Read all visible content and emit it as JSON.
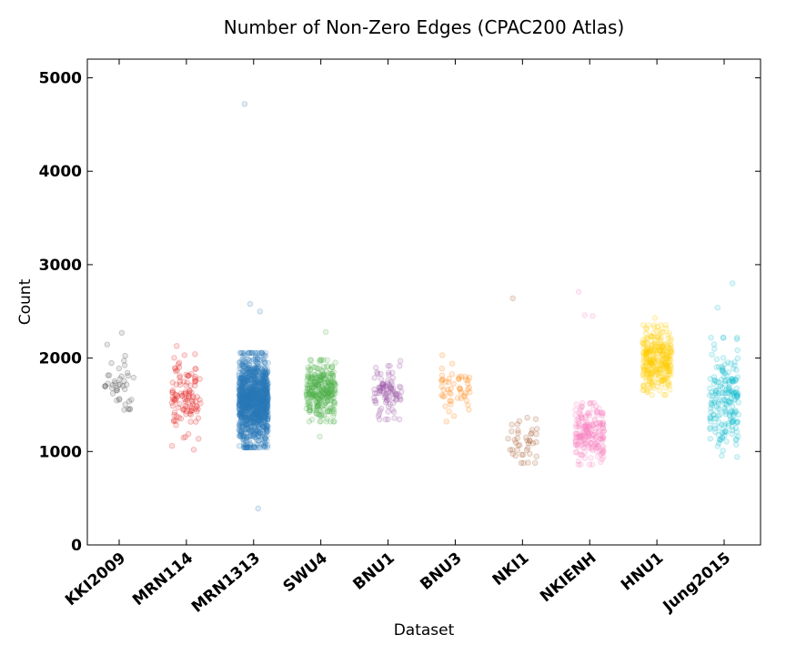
{
  "chart_data": {
    "type": "scatter",
    "title": "Number of Non-Zero Edges (CPAC200 Atlas)",
    "xlabel": "Dataset",
    "ylabel": "Count",
    "ylim": [
      0,
      5200
    ],
    "yticks": [
      0,
      1000,
      2000,
      3000,
      4000,
      5000
    ],
    "grid": false,
    "categories": [
      "KKI2009",
      "MRN114",
      "MRN1313",
      "SWU4",
      "BNU1",
      "BNU3",
      "NKI1",
      "NKIENH",
      "HNU1",
      "Jung2015"
    ],
    "series": [
      {
        "category": "KKI2009",
        "color": "#444444",
        "count": 40,
        "mean": 1760,
        "sd": 190,
        "outliers": [
          2270,
          1450
        ]
      },
      {
        "category": "MRN114",
        "color": "#e41a1c",
        "count": 110,
        "mean": 1580,
        "sd": 210,
        "outliers": [
          2130,
          1060,
          1020
        ]
      },
      {
        "category": "MRN1313",
        "color": "#2b7bba",
        "count": 1200,
        "mean": 1550,
        "sd": 230,
        "outliers": [
          4720,
          2580,
          2500,
          390
        ]
      },
      {
        "category": "SWU4",
        "color": "#4daf4a",
        "count": 300,
        "mean": 1650,
        "sd": 150,
        "outliers": [
          2280,
          1160
        ]
      },
      {
        "category": "BNU1",
        "color": "#984ea3",
        "count": 90,
        "mean": 1630,
        "sd": 130,
        "outliers": [
          1970,
          1380
        ]
      },
      {
        "category": "BNU3",
        "color": "#ff7f00",
        "count": 50,
        "mean": 1650,
        "sd": 150,
        "outliers": [
          2030,
          1380
        ]
      },
      {
        "category": "NKI1",
        "color": "#a65628",
        "count": 40,
        "mean": 1120,
        "sd": 110,
        "outliers": [
          2640,
          880
        ]
      },
      {
        "category": "NKIENH",
        "color": "#f781bf",
        "count": 200,
        "mean": 1190,
        "sd": 150,
        "outliers": [
          2710,
          2460,
          2450,
          860
        ]
      },
      {
        "category": "HNU1",
        "color": "#ffcc00",
        "count": 300,
        "mean": 1980,
        "sd": 170,
        "outliers": [
          2430,
          1660
        ]
      },
      {
        "category": "Jung2015",
        "color": "#17becf",
        "count": 200,
        "mean": 1580,
        "sd": 290,
        "outliers": [
          2800,
          2540,
          1010
        ]
      }
    ]
  }
}
